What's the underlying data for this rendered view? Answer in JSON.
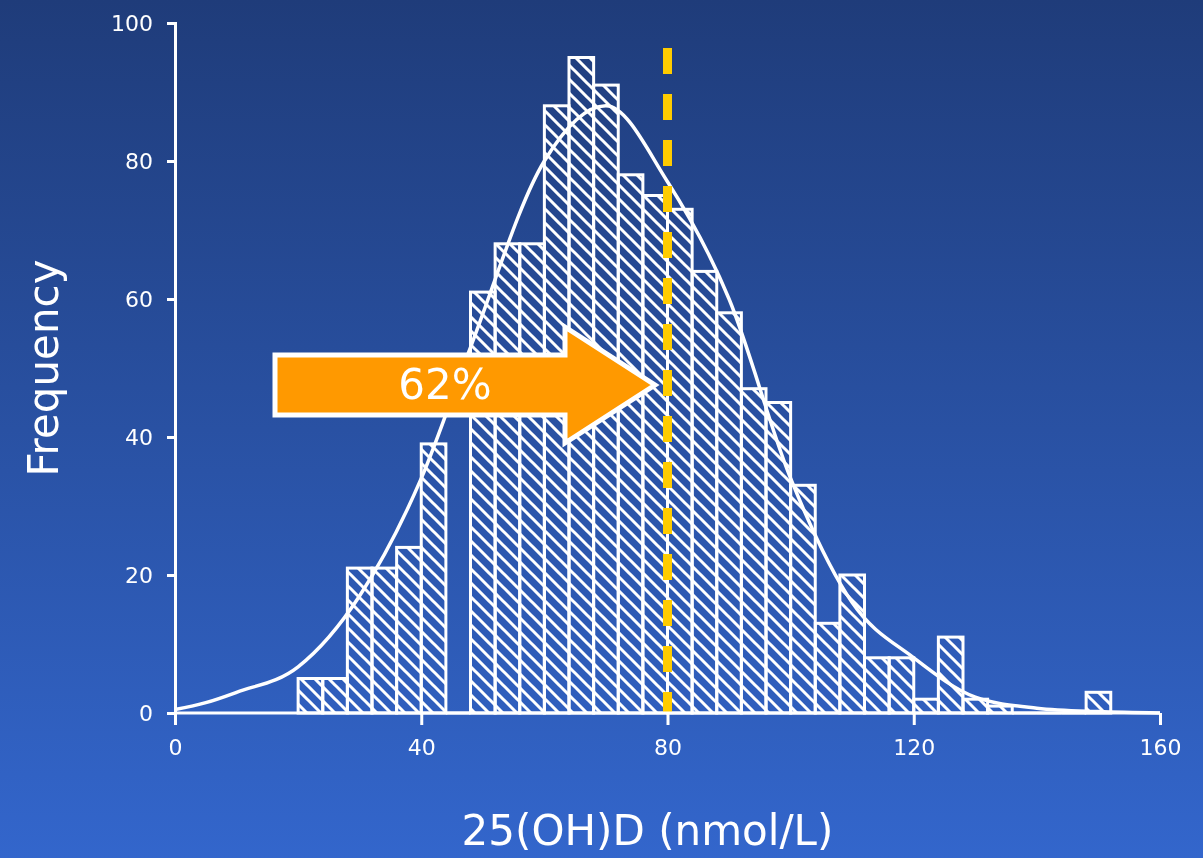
{
  "chart_data": {
    "type": "histogram",
    "xlabel": "25(OH)D (nmol/L)",
    "ylabel": "Frequency",
    "bins": [
      20,
      24,
      28,
      32,
      36,
      40,
      44,
      48,
      52,
      56,
      60,
      64,
      68,
      72,
      76,
      80,
      84,
      88,
      92,
      96,
      100,
      104,
      108,
      112,
      116,
      120,
      124,
      128,
      132,
      136,
      140,
      144,
      148,
      152
    ],
    "values": [
      5,
      5,
      21,
      21,
      24,
      39,
      null,
      61,
      68,
      68,
      88,
      95,
      91,
      78,
      75,
      73,
      64,
      58,
      47,
      45,
      33,
      13,
      20,
      8,
      8,
      2,
      11,
      2,
      1,
      null,
      null,
      null,
      3
    ],
    "color": "#ffffff",
    "series": [
      {
        "type": "line",
        "color": "#ffffff",
        "x": [
          0,
          5,
          10,
          20,
          30,
          40,
          48,
          60,
          70,
          80,
          90,
          100,
          110,
          120,
          130,
          140,
          150,
          160
        ],
        "values": [
          0.5,
          1.5,
          3,
          6.7,
          17,
          34,
          53,
          80,
          88,
          77,
          60,
          34,
          16,
          8,
          2.3,
          0.7,
          0.2,
          0
        ]
      }
    ],
    "xlim": [
      0,
      160
    ],
    "xticks": [
      0,
      40,
      80,
      120,
      160
    ],
    "ylim": [
      0,
      100
    ],
    "yticks": [
      0,
      20,
      40,
      60,
      80,
      100
    ],
    "grid": false,
    "ref_lines": [
      {
        "axis": "x",
        "value": 80,
        "color": "#ffcc00",
        "line_style": "dashed"
      }
    ],
    "annotations": [
      "62%"
    ]
  }
}
